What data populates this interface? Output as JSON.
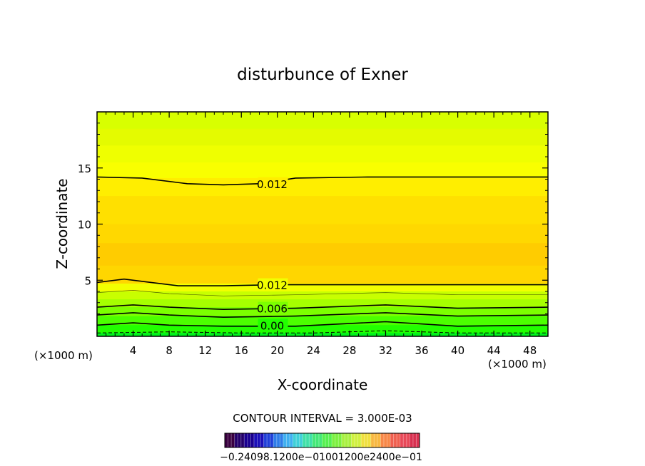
{
  "chart_data": {
    "type": "heatmap",
    "title": "disturbunce of Exner",
    "xlabel": "X-coordinate",
    "ylabel": "Z-coordinate",
    "x_unit": "(×1000 m)",
    "x_unit_left": "(×1000 m)",
    "xlim": [
      0,
      50
    ],
    "ylim": [
      0,
      20
    ],
    "x_ticks": [
      "4",
      "8",
      "12",
      "16",
      "20",
      "24",
      "28",
      "32",
      "36",
      "40",
      "44",
      "48"
    ],
    "y_ticks": [
      "5",
      "10",
      "15"
    ],
    "contour_interval_text": "CONTOUR INTERVAL = 3.000E-03",
    "colorbar_label_text": "−0.24098.1200e−01001200e2400e−01",
    "contour_labels": [
      {
        "text": "0.012",
        "x": 18,
        "z": 13.6
      },
      {
        "text": "0.012",
        "x": 18,
        "z": 4.6
      },
      {
        "text": "0.006",
        "x": 18,
        "z": 2.5
      },
      {
        "text": "0.00",
        "x": 18,
        "z": 1.0
      }
    ],
    "layers": [
      {
        "z_top": 20.0,
        "value": 0.0,
        "color": "#d8ff00"
      },
      {
        "z_top": 18.5,
        "value": 0.003,
        "color": "#e4fb00"
      },
      {
        "z_top": 17.0,
        "value": 0.006,
        "color": "#efff00"
      },
      {
        "z_top": 15.5,
        "value": 0.009,
        "color": "#f9ff00"
      },
      {
        "z_top": 14.1,
        "value": 0.012,
        "color": "#ffee00"
      },
      {
        "z_top": 12.5,
        "value": 0.015,
        "color": "#ffe000"
      },
      {
        "z_top": 10.0,
        "value": 0.018,
        "color": "#ffd800"
      },
      {
        "z_top": 8.3,
        "value": 0.021,
        "color": "#ffcc00"
      },
      {
        "z_top": 6.3,
        "value": 0.018,
        "color": "#ffd600"
      },
      {
        "z_top": 4.7,
        "value": 0.012,
        "color": "#f2ff00"
      },
      {
        "z_top": 4.0,
        "value": 0.009,
        "color": "#c8ff00"
      },
      {
        "z_top": 3.3,
        "value": 0.006,
        "color": "#a6ff00"
      },
      {
        "z_top": 2.6,
        "value": 0.003,
        "color": "#7cff00"
      },
      {
        "z_top": 1.8,
        "value": 0.0,
        "color": "#4cff00"
      },
      {
        "z_top": 1.0,
        "value": -0.003,
        "color": "#22ff00"
      },
      {
        "z_top": 0.3,
        "value": -0.006,
        "color": "#00f21c"
      }
    ],
    "contours": [
      {
        "level": 0.012,
        "style": "solid",
        "points": [
          [
            0,
            14.2
          ],
          [
            5,
            14.1
          ],
          [
            10,
            13.6
          ],
          [
            14,
            13.5
          ],
          [
            18,
            13.6
          ],
          [
            22,
            14.1
          ],
          [
            30,
            14.2
          ],
          [
            40,
            14.2
          ],
          [
            50,
            14.2
          ]
        ]
      },
      {
        "level": 0.012,
        "style": "solid",
        "points": [
          [
            0,
            4.8
          ],
          [
            3,
            5.1
          ],
          [
            6,
            4.8
          ],
          [
            9,
            4.5
          ],
          [
            14,
            4.5
          ],
          [
            20,
            4.6
          ],
          [
            30,
            4.6
          ],
          [
            40,
            4.6
          ],
          [
            50,
            4.6
          ]
        ]
      },
      {
        "level": 0.009,
        "style": "thin",
        "points": [
          [
            0,
            3.9
          ],
          [
            4,
            4.1
          ],
          [
            8,
            3.8
          ],
          [
            14,
            3.6
          ],
          [
            22,
            3.7
          ],
          [
            32,
            3.9
          ],
          [
            40,
            3.7
          ],
          [
            50,
            3.7
          ]
        ]
      },
      {
        "level": 0.006,
        "style": "solid",
        "points": [
          [
            0,
            2.6
          ],
          [
            4,
            2.8
          ],
          [
            8,
            2.6
          ],
          [
            14,
            2.4
          ],
          [
            22,
            2.5
          ],
          [
            32,
            2.8
          ],
          [
            40,
            2.5
          ],
          [
            50,
            2.6
          ]
        ]
      },
      {
        "level": 0.003,
        "style": "solid",
        "points": [
          [
            0,
            1.9
          ],
          [
            4,
            2.1
          ],
          [
            8,
            1.9
          ],
          [
            14,
            1.7
          ],
          [
            22,
            1.8
          ],
          [
            32,
            2.1
          ],
          [
            40,
            1.8
          ],
          [
            50,
            1.9
          ]
        ]
      },
      {
        "level": 0.0,
        "style": "solid",
        "points": [
          [
            0,
            1.0
          ],
          [
            4,
            1.2
          ],
          [
            8,
            1.0
          ],
          [
            14,
            0.9
          ],
          [
            22,
            0.9
          ],
          [
            32,
            1.3
          ],
          [
            40,
            0.9
          ],
          [
            50,
            1.0
          ]
        ]
      },
      {
        "level": -0.003,
        "style": "dashed",
        "points": [
          [
            0,
            0.3
          ],
          [
            8,
            0.4
          ],
          [
            16,
            0.3
          ],
          [
            24,
            0.3
          ],
          [
            32,
            0.5
          ],
          [
            40,
            0.3
          ],
          [
            50,
            0.3
          ]
        ]
      }
    ]
  },
  "colorbar_colors": [
    "#3a0040",
    "#24006a",
    "#1a0090",
    "#1c10b8",
    "#2040d8",
    "#2f7ee8",
    "#3fb0f0",
    "#3fd0d8",
    "#3fe0a8",
    "#44e878",
    "#56f050",
    "#7cf040",
    "#a8f040",
    "#d0f040",
    "#f0e040",
    "#f8b840",
    "#f88848",
    "#f06050",
    "#e84858",
    "#d83050"
  ]
}
